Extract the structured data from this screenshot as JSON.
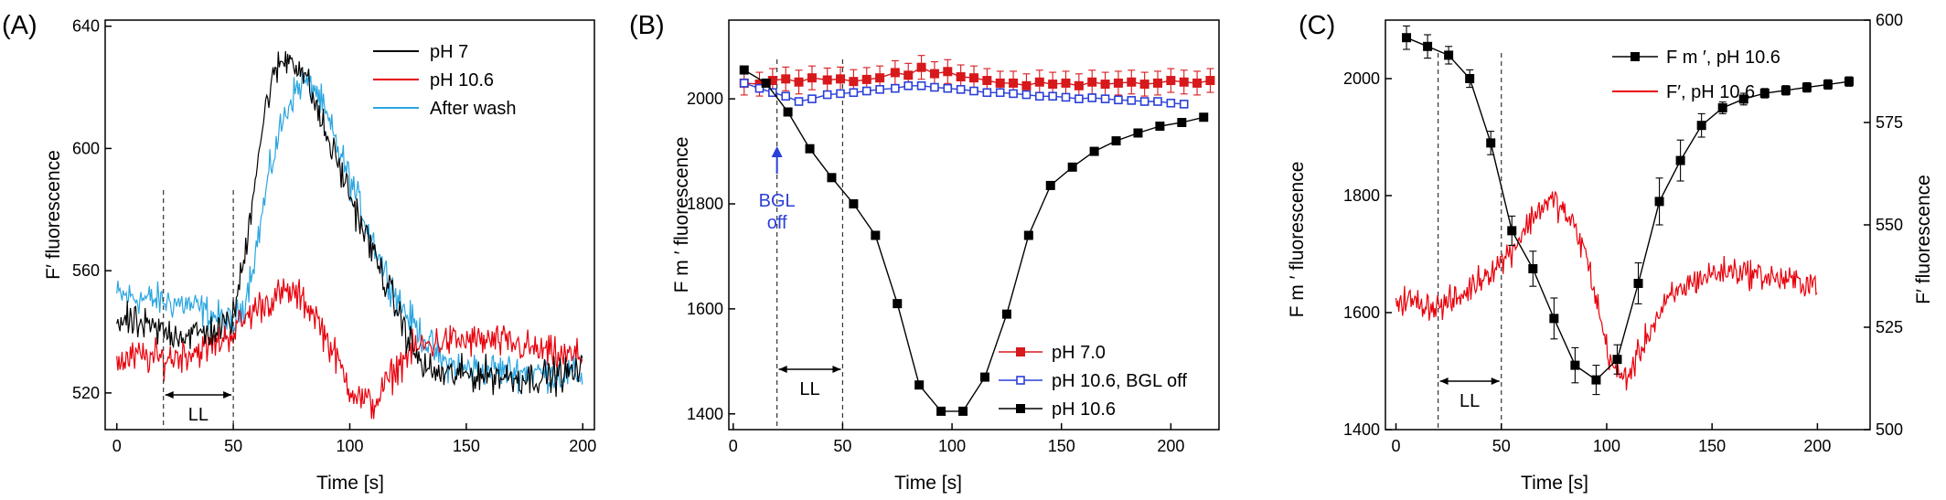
{
  "chart_data": [
    {
      "panel": "(A)",
      "type": "line",
      "xlabel": "Time [s]",
      "ylabel": "F′ fluorescence",
      "xlim": [
        -5,
        205
      ],
      "ylim": [
        508,
        642
      ],
      "xticks": [
        0,
        50,
        100,
        150,
        200
      ],
      "yticks": [
        520,
        560,
        600,
        640
      ],
      "legend_position": "top-right",
      "annotations": {
        "label": "LL",
        "start": 20,
        "end": 50
      },
      "series": [
        {
          "name": "pH 7",
          "color": "#000000",
          "noise": 4,
          "points": [
            [
              0,
              544
            ],
            [
              10,
              542
            ],
            [
              20,
              540
            ],
            [
              30,
              539
            ],
            [
              40,
              540
            ],
            [
              45,
              541
            ],
            [
              50,
              545
            ],
            [
              55,
              565
            ],
            [
              60,
              595
            ],
            [
              65,
              618
            ],
            [
              70,
              628
            ],
            [
              75,
              630
            ],
            [
              80,
              625
            ],
            [
              85,
              615
            ],
            [
              90,
              604
            ],
            [
              95,
              595
            ],
            [
              100,
              585
            ],
            [
              105,
              575
            ],
            [
              110,
              566
            ],
            [
              115,
              557
            ],
            [
              120,
              548
            ],
            [
              125,
              538
            ],
            [
              130,
              530
            ],
            [
              135,
              527
            ],
            [
              140,
              526
            ],
            [
              150,
              526
            ],
            [
              160,
              526
            ],
            [
              170,
              525
            ],
            [
              180,
              525
            ],
            [
              190,
              526
            ],
            [
              200,
              527
            ]
          ]
        },
        {
          "name": "pH 10.6",
          "color": "#e8000b",
          "noise": 4,
          "points": [
            [
              0,
              530
            ],
            [
              10,
              532
            ],
            [
              20,
              531
            ],
            [
              30,
              533
            ],
            [
              40,
              535
            ],
            [
              50,
              540
            ],
            [
              60,
              548
            ],
            [
              70,
              552
            ],
            [
              75,
              553
            ],
            [
              80,
              550
            ],
            [
              85,
              546
            ],
            [
              90,
              538
            ],
            [
              95,
              530
            ],
            [
              100,
              522
            ],
            [
              105,
              518
            ],
            [
              110,
              516
            ],
            [
              115,
              522
            ],
            [
              120,
              528
            ],
            [
              125,
              533
            ],
            [
              130,
              535
            ],
            [
              140,
              537
            ],
            [
              150,
              537
            ],
            [
              160,
              537
            ],
            [
              170,
              536
            ],
            [
              180,
              534
            ],
            [
              190,
              532
            ],
            [
              200,
              532
            ]
          ]
        },
        {
          "name": "After wash",
          "color": "#2aa6e0",
          "noise": 4,
          "points": [
            [
              0,
              552
            ],
            [
              10,
              551
            ],
            [
              20,
              550
            ],
            [
              30,
              549
            ],
            [
              40,
              546
            ],
            [
              50,
              542
            ],
            [
              55,
              550
            ],
            [
              60,
              568
            ],
            [
              65,
              590
            ],
            [
              70,
              606
            ],
            [
              75,
              617
            ],
            [
              80,
              622
            ],
            [
              85,
              620
            ],
            [
              90,
              610
            ],
            [
              95,
              600
            ],
            [
              100,
              590
            ],
            [
              105,
              580
            ],
            [
              110,
              570
            ],
            [
              115,
              560
            ],
            [
              120,
              552
            ],
            [
              125,
              545
            ],
            [
              130,
              540
            ],
            [
              135,
              535
            ],
            [
              140,
              530
            ],
            [
              150,
              528
            ],
            [
              160,
              528
            ],
            [
              170,
              527
            ],
            [
              180,
              527
            ],
            [
              190,
              526
            ],
            [
              200,
              526
            ]
          ]
        }
      ]
    },
    {
      "panel": "(B)",
      "type": "line",
      "xlabel": "Time [s]",
      "ylabel": "F m ′ fluorescence",
      "xlim": [
        -2,
        222
      ],
      "ylim": [
        1370,
        2150
      ],
      "xticks": [
        0,
        50,
        100,
        150,
        200
      ],
      "yticks": [
        1400,
        1600,
        1800,
        2000
      ],
      "legend_position": "bottom-right",
      "annotations": {
        "label": "LL",
        "start": 20,
        "end": 50,
        "arrow_text": [
          "BGL",
          "off"
        ],
        "arrow_x": 20
      },
      "series": [
        {
          "name": "pH 7.0",
          "color": "#d7191c",
          "marker": "filled-square",
          "errors": true,
          "x": [
            5,
            12,
            18,
            24,
            30,
            36,
            43,
            49,
            55,
            61,
            67,
            74,
            80,
            86,
            92,
            98,
            104,
            110,
            116,
            122,
            128,
            134,
            140,
            146,
            152,
            158,
            164,
            170,
            176,
            182,
            188,
            194,
            200,
            206,
            212,
            218
          ],
          "y": [
            2030,
            2028,
            2035,
            2038,
            2032,
            2040,
            2036,
            2038,
            2033,
            2037,
            2040,
            2050,
            2045,
            2060,
            2048,
            2052,
            2042,
            2040,
            2035,
            2030,
            2030,
            2025,
            2032,
            2028,
            2030,
            2025,
            2032,
            2028,
            2030,
            2032,
            2028,
            2030,
            2035,
            2032,
            2030,
            2035
          ]
        },
        {
          "name": "pH 10.6, BGL off",
          "color": "#2a3fd9",
          "marker": "open-square",
          "x": [
            5,
            12,
            18,
            24,
            30,
            36,
            43,
            49,
            55,
            61,
            67,
            74,
            80,
            86,
            92,
            98,
            104,
            110,
            116,
            122,
            128,
            134,
            140,
            146,
            152,
            158,
            164,
            170,
            176,
            182,
            188,
            194,
            200,
            206
          ],
          "y": [
            2030,
            2020,
            2012,
            2005,
            1995,
            2000,
            2008,
            2010,
            2012,
            2015,
            2018,
            2020,
            2025,
            2025,
            2022,
            2020,
            2018,
            2015,
            2012,
            2012,
            2010,
            2008,
            2005,
            2005,
            2003,
            2000,
            2002,
            2000,
            1998,
            1997,
            1995,
            1995,
            1992,
            1990
          ]
        },
        {
          "name": "pH 10.6",
          "color": "#000000",
          "marker": "filled-square",
          "x": [
            5,
            15,
            25,
            35,
            45,
            55,
            65,
            75,
            85,
            95,
            105,
            115,
            125,
            135,
            145,
            155,
            165,
            175,
            185,
            195,
            205,
            215
          ],
          "y": [
            2055,
            2030,
            1975,
            1905,
            1850,
            1800,
            1740,
            1610,
            1455,
            1405,
            1405,
            1470,
            1590,
            1740,
            1835,
            1870,
            1900,
            1920,
            1935,
            1948,
            1955,
            1965
          ]
        }
      ]
    },
    {
      "panel": "(C)",
      "type": "line",
      "xlabel": "Time [s]",
      "ylabel_left": "F m ′ fluorescence",
      "ylabel_right": "F′ fluorescence",
      "xlim": [
        -5,
        225
      ],
      "ylim_left": [
        1400,
        2100
      ],
      "ylim_right": [
        500,
        600
      ],
      "xticks": [
        0,
        50,
        100,
        150,
        200
      ],
      "yticks_left": [
        1400,
        1600,
        1800,
        2000
      ],
      "yticks_right": [
        500,
        525,
        550,
        575,
        600
      ],
      "legend_position": "top-right",
      "annotations": {
        "label": "LL",
        "start": 20,
        "end": 50
      },
      "series": [
        {
          "name": "F m ′, pH 10.6",
          "color": "#000000",
          "marker": "filled-square",
          "axis": "left",
          "errors": true,
          "x": [
            5,
            15,
            25,
            35,
            45,
            55,
            65,
            75,
            85,
            95,
            105,
            115,
            125,
            135,
            145,
            155,
            165,
            175,
            185,
            195,
            205,
            215
          ],
          "y": [
            2070,
            2055,
            2040,
            2000,
            1890,
            1740,
            1675,
            1590,
            1510,
            1485,
            1520,
            1650,
            1790,
            1860,
            1920,
            1950,
            1965,
            1975,
            1980,
            1985,
            1990,
            1995
          ],
          "err": [
            20,
            20,
            15,
            15,
            20,
            25,
            30,
            35,
            30,
            25,
            25,
            35,
            40,
            35,
            20,
            10,
            10,
            8,
            8,
            8,
            8,
            8
          ]
        },
        {
          "name": "F′, pH 10.6",
          "color": "#e8000b",
          "axis": "right",
          "noise": 2.5,
          "points": [
            [
              0,
              532
            ],
            [
              10,
              531
            ],
            [
              20,
              530
            ],
            [
              30,
              532
            ],
            [
              40,
              537
            ],
            [
              50,
              541
            ],
            [
              55,
              544
            ],
            [
              60,
              548
            ],
            [
              65,
              552
            ],
            [
              70,
              555
            ],
            [
              75,
              556
            ],
            [
              80,
              553
            ],
            [
              85,
              549
            ],
            [
              90,
              543
            ],
            [
              95,
              532
            ],
            [
              100,
              520
            ],
            [
              105,
              513
            ],
            [
              110,
              513
            ],
            [
              115,
              518
            ],
            [
              120,
              524
            ],
            [
              125,
              528
            ],
            [
              130,
              532
            ],
            [
              140,
              536
            ],
            [
              150,
              538
            ],
            [
              160,
              539
            ],
            [
              170,
              538
            ],
            [
              180,
              537
            ],
            [
              190,
              536
            ],
            [
              200,
              536
            ]
          ]
        }
      ]
    }
  ]
}
